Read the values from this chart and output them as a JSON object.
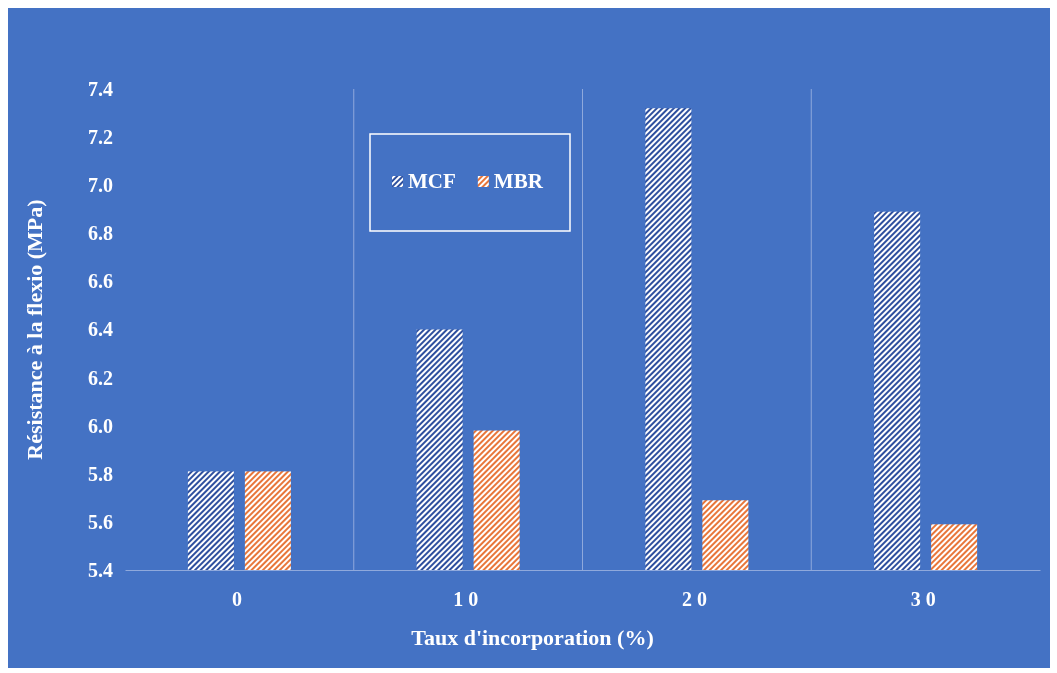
{
  "chart_data": {
    "type": "bar",
    "xlabel": "Taux d'incorporation (%)",
    "ylabel": "Résistance à la flexio (MPa)",
    "categories": [
      "0",
      "10",
      "20",
      "30"
    ],
    "series": [
      {
        "name": "MCF",
        "color": "#2e4f9e",
        "values": [
          5.81,
          6.4,
          7.32,
          6.89
        ]
      },
      {
        "name": "MBR",
        "color": "#e8763a",
        "values": [
          5.81,
          5.98,
          5.69,
          5.59
        ]
      }
    ],
    "ylim": [
      5.4,
      7.4
    ],
    "yticks": [
      {
        "value": 5.4,
        "label": "5.4"
      },
      {
        "value": 5.6,
        "label": "5.6"
      },
      {
        "value": 5.8,
        "label": "5.8"
      },
      {
        "value": 6.0,
        "label": "6.0"
      },
      {
        "value": 6.2,
        "label": "6.2"
      },
      {
        "value": 6.4,
        "label": "6.4"
      },
      {
        "value": 6.6,
        "label": "6.6"
      },
      {
        "value": 6.8,
        "label": "6.8"
      },
      {
        "value": 7.0,
        "label": "7.0"
      },
      {
        "value": 7.2,
        "label": "7.2"
      },
      {
        "value": 7.4,
        "label": "7.4"
      }
    ],
    "grid": "x",
    "legend": "top left"
  }
}
